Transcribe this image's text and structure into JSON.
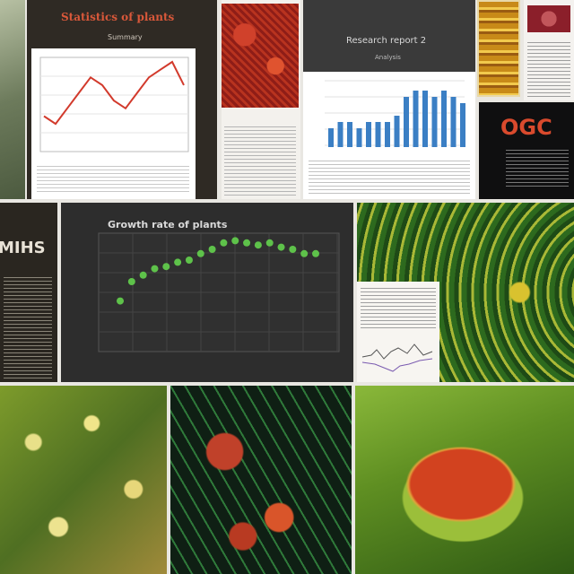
{
  "tiles": {
    "t1": {
      "heading": "Statistics of plants",
      "sub": "Summary"
    },
    "t3": {
      "heading": "Research report 2",
      "sub": "Analysis"
    },
    "t5": {
      "text": "OGC"
    },
    "t6": {
      "text": "MIHS"
    },
    "t7": {
      "title": "Growth rate of plants"
    }
  },
  "chart_data": [
    {
      "type": "line",
      "title": "",
      "values": [
        4,
        3,
        5,
        7,
        9,
        8,
        6,
        5,
        7,
        9,
        10,
        11,
        8
      ],
      "color": "#d23a2c"
    },
    {
      "type": "bar",
      "title": "",
      "values": [
        3,
        4,
        4,
        3,
        4,
        4,
        4,
        5,
        8,
        9,
        9,
        8,
        9,
        8,
        7
      ],
      "color": "#3b7fc4"
    },
    {
      "type": "scatter",
      "title": "",
      "values": [
        2.1,
        3.0,
        3.3,
        3.6,
        3.7,
        3.9,
        4.0,
        4.3,
        4.5,
        4.8,
        4.9,
        4.8,
        4.7,
        4.8,
        4.6,
        4.5,
        4.3,
        4.3
      ],
      "color": "#5ec24a"
    }
  ],
  "colors": {
    "leaf": "#6b9a2c",
    "dark": "#1f2a1a",
    "red": "#c23b22"
  }
}
